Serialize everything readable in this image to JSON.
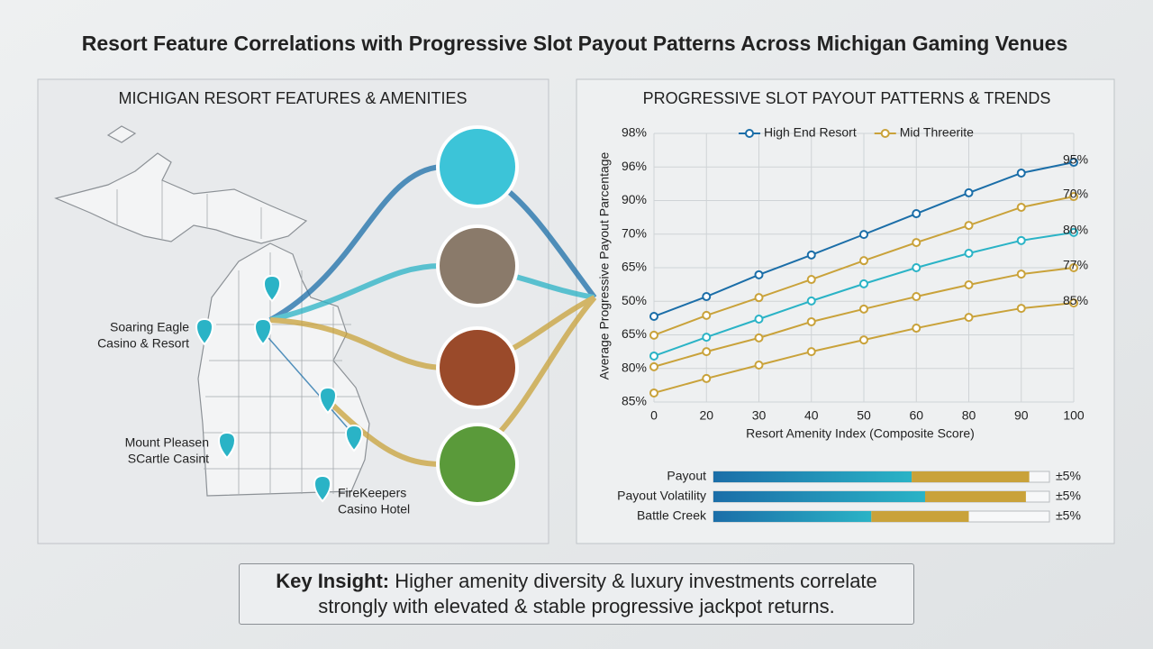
{
  "title": "Resort Feature Correlations with Progressive Slot Payout Patterns Across Michigan Gaming Venues",
  "left_panel": {
    "title": "MICHIGAN RESORT FEATURES & AMENITIES",
    "locations": [
      [
        "Soaring Eagle",
        "Casino & Resort"
      ],
      [
        "Mount Pleasen",
        "SCartle Casint"
      ],
      [
        "FireKeepers",
        "Casino Hotel"
      ]
    ]
  },
  "chart_data": {
    "type": "line",
    "title": "PROGRESSIVE SLOT PAYOUT PATTERNS & TRENDS",
    "y_axis_label": "Average Progressive Payout Parcentage",
    "x_axis_label": "Resort Amenity Index (Composite Score)",
    "categories": [
      "0",
      "20",
      "30",
      "40",
      "50",
      "60",
      "80",
      "90",
      "100"
    ],
    "y_categories": [
      "85%",
      "80%",
      "65%",
      "50%",
      "65%",
      "70%",
      "90%",
      "96%",
      "98%"
    ],
    "ylim": [
      0,
      8
    ],
    "grid": true,
    "series": [
      {
        "name": "High End Resort",
        "color": "#1b6ea8",
        "values": [
          2.55,
          3.14,
          3.79,
          4.38,
          4.99,
          5.61,
          6.23,
          6.82,
          7.14
        ],
        "end_label": "95%"
      },
      {
        "name": "Mid Threerite",
        "color": "#c9a23a",
        "values": [
          1.99,
          2.58,
          3.11,
          3.65,
          4.21,
          4.75,
          5.26,
          5.8,
          6.12
        ],
        "end_label": "70%"
      },
      {
        "color": "#2ab3c6",
        "values": [
          1.37,
          1.93,
          2.47,
          3.01,
          3.52,
          4.0,
          4.43,
          4.81,
          5.05
        ],
        "end_label": "80%"
      },
      {
        "color": "#c9a23a",
        "values": [
          1.05,
          1.5,
          1.91,
          2.39,
          2.77,
          3.14,
          3.49,
          3.81,
          4.0
        ],
        "end_label": "77%"
      },
      {
        "color": "#c9a23a",
        "values": [
          0.27,
          0.7,
          1.1,
          1.5,
          1.85,
          2.2,
          2.52,
          2.79,
          2.95
        ],
        "end_label": "85%"
      }
    ]
  },
  "bars": {
    "xlim": [
      0,
      100
    ],
    "colors": [
      "#2ab3c6",
      "#c9a23a"
    ],
    "rows": [
      {
        "name": "Payout",
        "values": [
          59,
          35
        ],
        "label": "±5%"
      },
      {
        "name": "Payout Volatility",
        "values": [
          63,
          30
        ],
        "label": "±5%"
      },
      {
        "name": "Battle Creek",
        "values": [
          47,
          29
        ],
        "label": "±5%"
      }
    ]
  },
  "insight": {
    "lead": "Key Insight:",
    "text": "Higher amenity diversity & luxury investments correlate strongly with elevated & stable progressive jackpot returns."
  }
}
